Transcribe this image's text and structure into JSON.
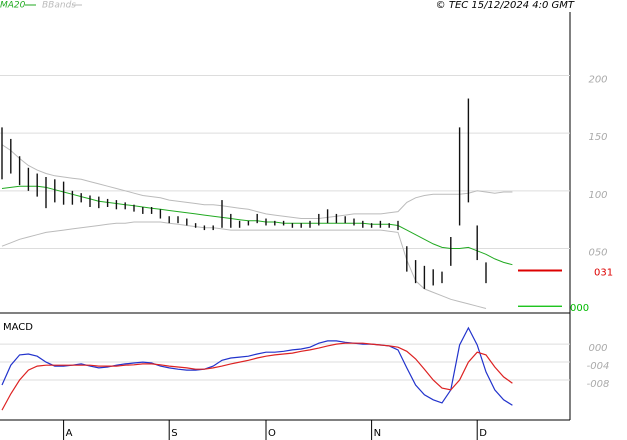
{
  "chart_data": [
    {
      "type": "stock",
      "title": "© TEC 15/12/2024 4:0 GMT",
      "categories": [
        null,
        null,
        null,
        null,
        null,
        null,
        null,
        "A",
        null,
        null,
        null,
        null,
        null,
        null,
        null,
        null,
        null,
        null,
        null,
        "S",
        null,
        null,
        null,
        null,
        null,
        null,
        null,
        null,
        null,
        null,
        "O",
        null,
        null,
        null,
        null,
        null,
        null,
        null,
        null,
        null,
        null,
        null,
        "N",
        null,
        null,
        null,
        null,
        null,
        null,
        null,
        null,
        null,
        null,
        null,
        "D",
        null,
        null,
        null,
        null
      ],
      "high": [
        155,
        145,
        130,
        120,
        115,
        112,
        110,
        108,
        100,
        98,
        96,
        95,
        93,
        92,
        90,
        88,
        86,
        86,
        84,
        78,
        78,
        76,
        72,
        70,
        70,
        92,
        80,
        74,
        74,
        80,
        76,
        74,
        74,
        72,
        72,
        74,
        80,
        84,
        80,
        78,
        76,
        74,
        72,
        74,
        72,
        74,
        52,
        40,
        35,
        32,
        30,
        60,
        155,
        180,
        70,
        38,
        null,
        null,
        null
      ],
      "low": [
        110,
        115,
        105,
        100,
        95,
        85,
        90,
        88,
        88,
        90,
        86,
        85,
        86,
        84,
        84,
        82,
        80,
        80,
        76,
        72,
        72,
        70,
        68,
        66,
        66,
        68,
        68,
        68,
        70,
        72,
        70,
        70,
        70,
        68,
        68,
        68,
        70,
        72,
        72,
        72,
        70,
        68,
        68,
        68,
        68,
        66,
        30,
        20,
        15,
        18,
        20,
        35,
        70,
        90,
        40,
        20,
        null,
        null,
        null
      ],
      "series": [
        {
          "name": "MA20",
          "color": "#22aa22",
          "values": [
            102,
            103,
            104,
            104,
            104,
            103,
            101,
            99,
            97,
            95,
            93,
            91,
            90,
            89,
            88,
            87,
            86,
            85,
            84,
            83,
            82,
            81,
            80,
            79,
            78,
            77,
            76,
            75,
            74,
            74,
            73,
            73,
            72,
            72,
            72,
            72,
            72,
            72,
            72,
            72,
            72,
            72,
            71,
            71,
            71,
            70,
            66,
            62,
            58,
            54,
            51,
            50,
            50,
            51,
            48,
            45,
            41,
            38,
            36
          ]
        },
        {
          "name": "BBands",
          "color": "#bbbbbb",
          "upper": [
            140,
            135,
            128,
            122,
            118,
            115,
            113,
            112,
            111,
            110,
            108,
            106,
            104,
            102,
            100,
            98,
            96,
            95,
            94,
            92,
            91,
            90,
            89,
            88,
            88,
            87,
            86,
            85,
            84,
            82,
            80,
            79,
            78,
            77,
            76,
            76,
            76,
            77,
            78,
            79,
            80,
            80,
            80,
            80,
            81,
            82,
            90,
            94,
            96,
            97,
            97,
            97,
            97,
            98,
            100,
            99,
            98,
            99,
            99
          ],
          "lower": [
            52,
            55,
            58,
            60,
            62,
            64,
            65,
            66,
            67,
            68,
            69,
            70,
            71,
            72,
            72,
            73,
            73,
            73,
            73,
            72,
            71,
            70,
            69,
            68,
            68,
            67,
            66,
            66,
            66,
            66,
            66,
            66,
            66,
            66,
            66,
            66,
            66,
            66,
            66,
            66,
            66,
            66,
            66,
            66,
            65,
            64,
            40,
            22,
            15,
            12,
            9,
            6,
            4,
            2,
            0,
            -2,
            null,
            null,
            null
          ]
        }
      ],
      "markers": [
        {
          "value": 31,
          "label": "031",
          "color": "#dd0000"
        },
        {
          "value": 0,
          "label": "000",
          "color": "#00bb00"
        }
      ],
      "ylim": [
        -5,
        255
      ],
      "yticks": [
        {
          "value": 200,
          "label": "200"
        },
        {
          "value": 150,
          "label": "150"
        },
        {
          "value": 100,
          "label": "100"
        },
        {
          "value": 50,
          "label": "050"
        }
      ],
      "grid": true
    },
    {
      "type": "line",
      "title": "MACD",
      "series": [
        {
          "color": "#2233cc",
          "values": [
            -0.091,
            -0.047,
            -0.024,
            -0.022,
            -0.027,
            -0.04,
            -0.049,
            -0.049,
            -0.047,
            -0.044,
            -0.049,
            -0.053,
            -0.051,
            -0.047,
            -0.044,
            -0.042,
            -0.04,
            -0.042,
            -0.049,
            -0.053,
            -0.056,
            -0.058,
            -0.058,
            -0.056,
            -0.049,
            -0.036,
            -0.031,
            -0.029,
            -0.027,
            -0.022,
            -0.018,
            -0.018,
            -0.016,
            -0.013,
            -0.011,
            -0.007,
            0.002,
            0.007,
            0.007,
            0.004,
            0.002,
            0,
            0,
            -0.002,
            -0.004,
            -0.013,
            -0.053,
            -0.091,
            -0.113,
            -0.124,
            -0.131,
            -0.102,
            -0.002,
            0.036,
            -0.002,
            -0.062,
            -0.102,
            -0.124,
            -0.136
          ]
        },
        {
          "color": "#dd2222",
          "values": [
            -0.147,
            -0.111,
            -0.08,
            -0.058,
            -0.049,
            -0.047,
            -0.047,
            -0.047,
            -0.047,
            -0.047,
            -0.047,
            -0.049,
            -0.049,
            -0.049,
            -0.047,
            -0.046,
            -0.044,
            -0.044,
            -0.046,
            -0.049,
            -0.051,
            -0.053,
            -0.056,
            -0.056,
            -0.053,
            -0.049,
            -0.044,
            -0.04,
            -0.036,
            -0.031,
            -0.027,
            -0.024,
            -0.022,
            -0.02,
            -0.016,
            -0.013,
            -0.009,
            -0.004,
            0,
            0.002,
            0.002,
            0.002,
            0,
            -0.002,
            -0.004,
            -0.007,
            -0.016,
            -0.033,
            -0.056,
            -0.08,
            -0.098,
            -0.102,
            -0.08,
            -0.04,
            -0.018,
            -0.024,
            -0.051,
            -0.073,
            -0.087
          ]
        }
      ],
      "ylim": [
        -0.169,
        0.067
      ],
      "yticks": [
        {
          "value": 0,
          "label": "000"
        },
        {
          "value": -0.04,
          "label": "-004"
        },
        {
          "value": -0.08,
          "label": "-008"
        }
      ],
      "grid": true
    }
  ]
}
